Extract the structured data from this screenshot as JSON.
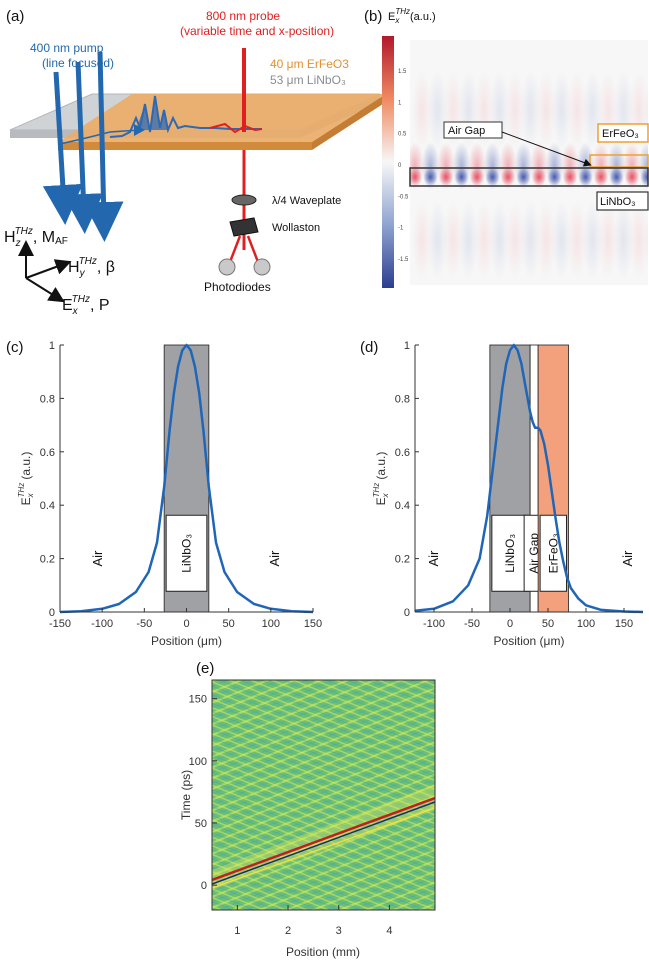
{
  "panels": {
    "a": {
      "label": "(a)",
      "pump_line1": "400 nm pump",
      "pump_line2": "(line focused)",
      "probe_line1": "800 nm probe",
      "probe_line2": "(variable time and x-position)",
      "erfeo3": "40 μm ErFeO3",
      "linbo3": "53 μm LiNbO₃",
      "waveplate": "λ/4 Waveplate",
      "wollaston": "Wollaston",
      "photodiodes": "Photodiodes",
      "axis_hz": "H",
      "axis_hz_sub": "z",
      "axis_hz_sup": "THz",
      "axis_hz_rest": ", M",
      "axis_hz_rest_sub": "AF",
      "axis_hy": "H",
      "axis_hy_sub": "y",
      "axis_hy_sup": "THz",
      "axis_hy_rest": ", β",
      "axis_ex": "E",
      "axis_ex_sub": "x",
      "axis_ex_sup": "THz",
      "axis_ex_rest": ", P",
      "colors": {
        "pump": "#2368ae",
        "probe": "#e02020",
        "erfeo3": "#e8a458",
        "linbo3": "#c8cbcf"
      }
    },
    "b": {
      "label": "(b)",
      "colorbar_title": "E",
      "colorbar_sub": "x",
      "colorbar_sup": "THz",
      "colorbar_unit": "(a.u.)",
      "colorbar_ticks": [
        "1.5",
        "1",
        "0.5",
        "0",
        "-0.5",
        "-1",
        "-1.5"
      ],
      "airgap": "Air Gap",
      "erfeo3": "ErFeO₃",
      "linbo3": "LiNbO₃"
    },
    "e": {
      "label": "(e)",
      "xlabel": "Position (mm)",
      "ylabel": "Time (ps)",
      "xticks": [
        "1",
        "2",
        "3",
        "4"
      ],
      "yticks": [
        "0",
        "50",
        "100",
        "150"
      ]
    }
  },
  "chart_data": [
    {
      "panel": "(c)",
      "type": "line",
      "ylabel": "E",
      "ylabel_sub": "x",
      "ylabel_sup": "THz",
      "ylabel_unit": "(a.u.)",
      "xlabel": "Position (μm)",
      "xlim": [
        -150,
        150
      ],
      "ylim": [
        0,
        1
      ],
      "xticks": [
        "-150",
        "-100",
        "-50",
        "0",
        "50",
        "100",
        "150"
      ],
      "yticks": [
        "0",
        "0.2",
        "0.4",
        "0.6",
        "0.8",
        "1"
      ],
      "regions": [
        {
          "label": "LiNbO₃",
          "from": -26.5,
          "to": 26.5,
          "color": "#9fa1a4"
        }
      ],
      "annotations": [
        {
          "text": "Air",
          "x": -105,
          "y": 0.2
        },
        {
          "text": "Air",
          "x": 105,
          "y": 0.2
        }
      ],
      "series": [
        {
          "color": "#1f66b8",
          "x": [
            -150,
            -125,
            -100,
            -80,
            -60,
            -45,
            -35,
            -26.5,
            -20,
            -15,
            -10,
            -5,
            0,
            5,
            10,
            15,
            20,
            26.5,
            35,
            45,
            60,
            80,
            100,
            125,
            150
          ],
          "y": [
            0.0,
            0.003,
            0.012,
            0.03,
            0.075,
            0.15,
            0.26,
            0.47,
            0.68,
            0.82,
            0.92,
            0.98,
            1.0,
            0.98,
            0.92,
            0.82,
            0.68,
            0.47,
            0.26,
            0.15,
            0.075,
            0.03,
            0.012,
            0.003,
            0.0
          ]
        }
      ]
    },
    {
      "panel": "(d)",
      "type": "line",
      "ylabel": "E",
      "ylabel_sub": "x",
      "ylabel_sup": "THz",
      "ylabel_unit": "(a.u.)",
      "xlabel": "Position (μm)",
      "xlim": [
        -125,
        175
      ],
      "ylim": [
        0,
        1
      ],
      "xticks": [
        "-100",
        "-50",
        "0",
        "50",
        "100",
        "150"
      ],
      "yticks": [
        "0",
        "0.2",
        "0.4",
        "0.6",
        "0.8",
        "1"
      ],
      "regions": [
        {
          "label": "LiNbO₃",
          "from": -26.5,
          "to": 26.5,
          "color": "#9fa1a4"
        },
        {
          "label": "Air Gap",
          "from": 26.5,
          "to": 37,
          "color": "#ffffff"
        },
        {
          "label": "ErFeO₃",
          "from": 37,
          "to": 77,
          "color": "#f3a07c"
        }
      ],
      "annotations": [
        {
          "text": "Air",
          "x": -100,
          "y": 0.2
        },
        {
          "text": "Air",
          "x": 155,
          "y": 0.2
        }
      ],
      "series": [
        {
          "color": "#1f66b8",
          "x": [
            -125,
            -100,
            -75,
            -55,
            -40,
            -30,
            -20,
            -10,
            -5,
            0,
            5,
            10,
            15,
            20,
            26.5,
            30,
            33,
            37,
            40,
            45,
            50,
            55,
            60,
            65,
            70,
            75,
            80,
            90,
            100,
            120,
            150,
            175
          ],
          "y": [
            0.005,
            0.012,
            0.04,
            0.1,
            0.2,
            0.36,
            0.6,
            0.84,
            0.93,
            0.98,
            1.0,
            0.98,
            0.93,
            0.85,
            0.75,
            0.71,
            0.69,
            0.69,
            0.68,
            0.63,
            0.55,
            0.45,
            0.35,
            0.26,
            0.19,
            0.13,
            0.09,
            0.05,
            0.025,
            0.008,
            0.002,
            0.0
          ]
        }
      ]
    }
  ]
}
